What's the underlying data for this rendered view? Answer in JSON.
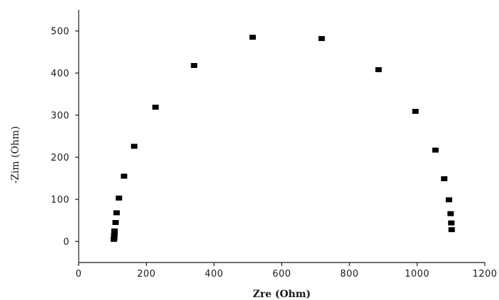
{
  "chart_data": {
    "type": "scatter",
    "title": "",
    "xlabel": "Zre (Ohm)",
    "ylabel": "-Zim (Ohm)",
    "xlim": [
      0,
      1200
    ],
    "ylim": [
      -50,
      550
    ],
    "xticks": [
      0,
      200,
      400,
      600,
      800,
      1000,
      1200
    ],
    "yticks": [
      0,
      100,
      200,
      300,
      400,
      500
    ],
    "grid": false,
    "legend": "none",
    "marker": "square",
    "marker_color": "#000000",
    "series": [
      {
        "points": [
          {
            "x": 104,
            "y": 5
          },
          {
            "x": 105,
            "y": 9
          },
          {
            "x": 105,
            "y": 14
          },
          {
            "x": 106,
            "y": 20
          },
          {
            "x": 106,
            "y": 25
          },
          {
            "x": 109,
            "y": 45
          },
          {
            "x": 112,
            "y": 68
          },
          {
            "x": 119,
            "y": 103
          },
          {
            "x": 134,
            "y": 155
          },
          {
            "x": 164,
            "y": 226
          },
          {
            "x": 227,
            "y": 319
          },
          {
            "x": 341,
            "y": 418
          },
          {
            "x": 514,
            "y": 485
          },
          {
            "x": 718,
            "y": 482
          },
          {
            "x": 886,
            "y": 408
          },
          {
            "x": 995,
            "y": 309
          },
          {
            "x": 1054,
            "y": 217
          },
          {
            "x": 1080,
            "y": 149
          },
          {
            "x": 1094,
            "y": 99
          },
          {
            "x": 1099,
            "y": 66
          },
          {
            "x": 1101,
            "y": 44
          },
          {
            "x": 1102,
            "y": 28
          }
        ]
      }
    ]
  }
}
